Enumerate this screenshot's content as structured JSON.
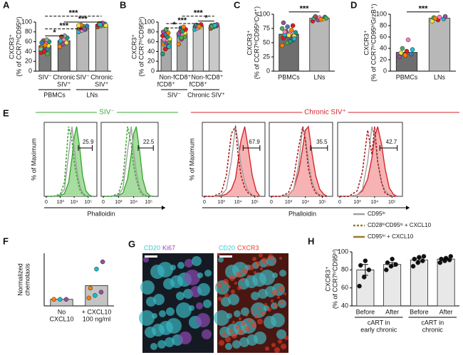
{
  "chart_data": [
    {
      "type": "bar-dot",
      "label": "A",
      "ylabel": [
        "CXCR3⁺",
        "(% of CCR7ʰⁱCD95ʰⁱ)"
      ],
      "categories": [
        [
          "SIV⁻"
        ],
        [
          "Chronic",
          "SIV⁺"
        ],
        [
          "SIV⁻"
        ],
        [
          "Chronic",
          "SIV⁺"
        ]
      ],
      "groups": [
        [
          "PBMCs"
        ],
        [
          "LNs"
        ]
      ],
      "values": [
        52,
        62,
        88,
        95
      ],
      "points": [
        [
          38,
          42,
          45,
          48,
          50,
          52,
          55,
          57,
          60,
          62,
          64,
          45,
          40,
          35,
          58,
          53
        ],
        [
          50,
          55,
          58,
          62,
          65,
          68,
          70,
          72
        ],
        [
          80,
          83,
          85,
          87,
          88,
          89,
          90,
          91,
          92,
          94,
          86,
          93
        ],
        [
          90,
          92,
          93,
          94,
          95,
          96,
          97,
          98,
          93,
          95
        ]
      ],
      "colors": [
        "#7a7a7a",
        "#7a7a7a",
        "#b8b8b8",
        "#b8b8b8"
      ],
      "point_colors": [
        "#e41a1c",
        "#4daf4a",
        "#377eb8",
        "#ff7f00",
        "#984ea3",
        "#f0e442",
        "#17becf",
        "#f781bf",
        "#1b9e77",
        "#a65628",
        "#999999",
        "#66c2a5"
      ],
      "ylim": [
        0,
        100
      ],
      "yticks": [
        0,
        20,
        40,
        60,
        80,
        100
      ],
      "annotations": [
        "*",
        "***",
        "***",
        "***"
      ]
    },
    {
      "type": "bar-dot",
      "label": "B",
      "ylabel": [
        "CXCR3⁺",
        "(% of CCR7ʰⁱCD95ʰⁱ)"
      ],
      "categories": [
        [
          "Non-",
          "fCD8⁺"
        ],
        [
          "fCD8⁺"
        ],
        [
          "Non-",
          "fCD8⁺"
        ],
        [
          "fCD8⁺"
        ]
      ],
      "groups": [
        [
          "SIV⁻"
        ],
        [
          "Chronic SIV⁺"
        ]
      ],
      "values": [
        65,
        76,
        92,
        92
      ],
      "points": [
        [
          35,
          45,
          50,
          55,
          58,
          60,
          62,
          64,
          66,
          68,
          70,
          72,
          75,
          78,
          80,
          85,
          50,
          65
        ],
        [
          55,
          65,
          70,
          72,
          75,
          78,
          80,
          82,
          85,
          88,
          90,
          76,
          68
        ],
        [
          85,
          88,
          90,
          92,
          93,
          95,
          94,
          91
        ],
        [
          87,
          90,
          92,
          93,
          94,
          95,
          91,
          93
        ]
      ],
      "colors": [
        "#a8a8a8",
        "#a8a8a8",
        "#c8c8c8",
        "#c8c8c8"
      ],
      "point_colors": [
        "#1b9e77",
        "#e41a1c",
        "#377eb8",
        "#ff7f00",
        "#984ea3",
        "#4daf4a",
        "#17becf",
        "#f781bf",
        "#f0e442",
        "#a65628"
      ],
      "ylim": [
        0,
        100
      ],
      "yticks": [
        0,
        20,
        40,
        60,
        80,
        100
      ],
      "annotations": [
        "*",
        "***",
        "***",
        "*"
      ]
    },
    {
      "type": "bar-dot",
      "label": "C",
      "ylabel": [
        "CXCR3⁺",
        "(% of CCR7ʰⁱCD95ʰⁱCyt⁺)"
      ],
      "categories": [
        [
          "PBMCs"
        ],
        [
          "LNs"
        ]
      ],
      "values": [
        65,
        93
      ],
      "points": [
        [
          45,
          50,
          55,
          58,
          60,
          62,
          64,
          66,
          68,
          70,
          72,
          75,
          78,
          80,
          85,
          63,
          57,
          69,
          52
        ],
        [
          88,
          90,
          92,
          93,
          94,
          95,
          96,
          91,
          93
        ]
      ],
      "colors": [
        "#6e6e6e",
        "#b8b8b8"
      ],
      "point_colors": [
        "#ff7f00",
        "#4daf4a",
        "#377eb8",
        "#e41a1c",
        "#984ea3",
        "#f0e442",
        "#17becf",
        "#f781bf",
        "#1b9e77",
        "#a65628"
      ],
      "ylim": [
        0,
        100
      ],
      "yticks": [
        0,
        25,
        50,
        75,
        100
      ],
      "annotations": [
        "***"
      ]
    },
    {
      "type": "bar-dot",
      "label": "D",
      "ylabel": [
        "CXCR3⁺",
        "(% of CCR7ʰⁱCD95ʰⁱGrzB⁺)"
      ],
      "categories": [
        [
          "PBMCs"
        ],
        [
          "LNs"
        ]
      ],
      "values": [
        33,
        93
      ],
      "points": [
        [
          25,
          28,
          30,
          32,
          35,
          38,
          40,
          55
        ],
        [
          88,
          90,
          92,
          94,
          95,
          96,
          93
        ]
      ],
      "colors": [
        "#6e6e6e",
        "#b8b8b8"
      ],
      "point_colors": [
        "#984ea3",
        "#ff7f00",
        "#377eb8",
        "#f0e442",
        "#e41a1c",
        "#17becf",
        "#4daf4a",
        "#f781bf"
      ],
      "ylim": [
        0,
        100
      ],
      "yticks": [
        0,
        20,
        40,
        60,
        80,
        100
      ],
      "annotations": [
        "***"
      ]
    },
    {
      "type": "flow-histogram",
      "label": "E",
      "group": "SIV⁻",
      "color": "#3aaa35",
      "ylabel": "% of Maximum",
      "xlabel": "Phalloidin",
      "x": [
        0,
        300,
        1000,
        2000,
        4000,
        7000,
        10000,
        15000,
        25000,
        40000,
        70000,
        120000,
        200000
      ],
      "xlim": [
        0,
        300000
      ],
      "xticks": [
        0,
        {
          "value": 1000,
          "label": "10³"
        },
        {
          "value": 10000,
          "label": "10⁴"
        },
        {
          "value": 100000,
          "label": "10⁵"
        }
      ],
      "ylim": [
        0,
        100
      ],
      "series_styles": [
        {
          "color": "#a0a0a0"
        },
        {
          "color": "#3aaa35",
          "dash": true
        },
        {
          "color": "#3aaa35",
          "fill": "#a8dca0"
        }
      ],
      "panels": [
        {
          "gate": 25.9,
          "series": [
            {
              "values": [
                0,
                0,
                2,
                10,
                60,
                100,
                70,
                40,
                15,
                5,
                1,
                0,
                0
              ]
            },
            {
              "values": [
                0,
                0,
                3,
                20,
                100,
                80,
                50,
                30,
                10,
                3,
                0,
                0,
                0
              ]
            },
            {
              "values": [
                0,
                0,
                1,
                4,
                20,
                55,
                85,
                100,
                70,
                30,
                8,
                2,
                0
              ]
            }
          ]
        },
        {
          "gate": 22.5,
          "series": [
            {
              "values": [
                0,
                0,
                2,
                12,
                65,
                100,
                65,
                35,
                12,
                4,
                1,
                0,
                0
              ]
            },
            {
              "values": [
                0,
                0,
                4,
                25,
                100,
                75,
                45,
                25,
                8,
                2,
                0,
                0,
                0
              ]
            },
            {
              "values": [
                0,
                0,
                1,
                5,
                25,
                60,
                90,
                100,
                65,
                25,
                6,
                1,
                0
              ]
            }
          ]
        }
      ]
    },
    {
      "type": "flow-histogram",
      "group": "Chronic SIV⁺",
      "color": "#d7262b",
      "ylabel": "% of Maximum",
      "xlabel": "Phalloidin",
      "x": [
        0,
        300,
        1000,
        2000,
        4000,
        7000,
        10000,
        15000,
        25000,
        40000,
        70000,
        120000,
        200000
      ],
      "xlim": [
        0,
        300000
      ],
      "xticks": [
        0,
        {
          "value": 1000,
          "label": "10³"
        },
        {
          "value": 10000,
          "label": "10⁴"
        },
        {
          "value": 100000,
          "label": "10⁵"
        }
      ],
      "ylim": [
        0,
        100
      ],
      "series_styles": [
        {
          "color": "#a0a0a0"
        },
        {
          "color": "#b01e22",
          "dash": true
        },
        {
          "color": "#d7262b",
          "fill": "#f7b3b3"
        }
      ],
      "panels": [
        {
          "gate": 67.9,
          "series": [
            {
              "values": [
                0,
                0,
                2,
                10,
                50,
                100,
                80,
                45,
                20,
                8,
                2,
                0,
                0
              ]
            },
            {
              "values": [
                0,
                0,
                5,
                30,
                90,
                100,
                60,
                30,
                12,
                5,
                1,
                0,
                0
              ]
            },
            {
              "values": [
                0,
                0,
                1,
                3,
                10,
                25,
                50,
                80,
                100,
                70,
                30,
                8,
                0
              ]
            }
          ]
        },
        {
          "gate": 35.5,
          "series": [
            {
              "values": [
                0,
                0,
                2,
                10,
                45,
                100,
                85,
                50,
                20,
                8,
                2,
                0,
                0
              ]
            },
            {
              "values": [
                0,
                0,
                5,
                25,
                70,
                100,
                80,
                40,
                15,
                5,
                1,
                0,
                0
              ]
            },
            {
              "values": [
                0,
                0,
                2,
                10,
                35,
                70,
                95,
                100,
                60,
                30,
                10,
                3,
                0
              ]
            }
          ]
        },
        {
          "gate": 42.7,
          "series": [
            {
              "values": [
                0,
                0,
                2,
                10,
                50,
                100,
                85,
                50,
                20,
                8,
                2,
                0,
                0
              ]
            },
            {
              "values": [
                0,
                0,
                8,
                35,
                95,
                60,
                100,
                50,
                20,
                5,
                1,
                0,
                0
              ]
            },
            {
              "values": [
                0,
                0,
                2,
                8,
                25,
                55,
                85,
                100,
                75,
                40,
                12,
                3,
                0
              ]
            }
          ]
        }
      ],
      "legend": [
        {
          "name": "CD95ˡᵒ",
          "color": "#a0a0a0"
        },
        {
          "name": "CD28ʰⁱCD95ˡᵒ + CXCL10",
          "color": "#9a7a2e",
          "dash": true
        },
        {
          "name": "CD95ʰⁱ + CXCL10",
          "color": "#9a7a2e"
        }
      ]
    },
    {
      "type": "bar-dot",
      "label": "F",
      "ylabel": [
        "Normalized",
        "chemotaxis"
      ],
      "categories": [
        [
          "No",
          "CXCL10"
        ],
        [
          "+ CXCL10",
          "100 ng/ml"
        ]
      ],
      "values": [
        1,
        3.1
      ],
      "points": [
        [
          1,
          1,
          1
        ],
        [
          1.2,
          1.6,
          2.1,
          2.7,
          5.6,
          6.7
        ]
      ],
      "colors": [
        "#c4c4c4",
        "#c4c4c4"
      ],
      "point_colors": [
        "#ff7f00",
        "#17becf",
        "#984ea3"
      ],
      "ylim": [
        0,
        8
      ]
    },
    {
      "type": "bar-dot",
      "label": "H",
      "ylabel": [
        "CXCR3⁺",
        "(% of CCR7ʰⁱCD95ʰⁱ)"
      ],
      "categories": [
        [
          "Before"
        ],
        [
          "After"
        ],
        [
          "Before"
        ],
        [
          "After"
        ]
      ],
      "groups": [
        [
          "cART in",
          "early chronic"
        ],
        [
          "cART in",
          "chronic"
        ]
      ],
      "values": [
        80,
        86,
        91,
        92
      ],
      "errors": [
        6,
        2,
        2,
        1
      ],
      "points": [
        [
          62,
          72,
          80,
          85,
          90
        ],
        [
          80,
          84,
          86,
          88,
          92
        ],
        [
          84,
          88,
          90,
          92,
          94,
          95
        ],
        [
          88,
          90,
          91,
          92,
          93,
          95
        ]
      ],
      "colors": [
        "#e8e8e8",
        "#e8e8e8",
        "#e8e8e8",
        "#e8e8e8"
      ],
      "point_colors": [
        "#111111"
      ],
      "ylim": [
        40,
        100
      ],
      "yticks": [
        40,
        60,
        80,
        100
      ]
    }
  ],
  "image_panel": {
    "label": "G",
    "left": [
      "CD20",
      "Ki67"
    ],
    "right": [
      "CD20",
      "CXCR3"
    ]
  }
}
